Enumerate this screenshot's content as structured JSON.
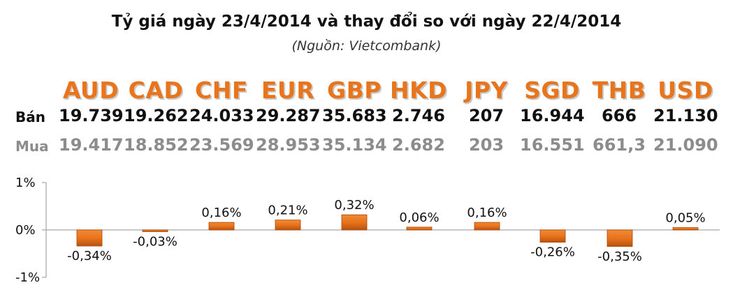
{
  "title": "Tỷ giá ngày 23/4/2014 và thay đổi so với ngày 22/4/2014",
  "subtitle": "(Nguồn: Vietcombank)",
  "rows": {
    "ban_label": "Bán",
    "mua_label": "Mua"
  },
  "colors": {
    "currency_code": "#e8741c",
    "bar_fill": "#e8741c",
    "bar_dark": "#a94708",
    "ban_text": "#111111",
    "mua_text": "#8c8c8c"
  },
  "currencies": [
    {
      "code": "AUD",
      "ban": "19.739",
      "mua": "19.417"
    },
    {
      "code": "CAD",
      "ban": "19.262",
      "mua": "18.852"
    },
    {
      "code": "CHF",
      "ban": "24.033",
      "mua": "23.569"
    },
    {
      "code": "EUR",
      "ban": "29.287",
      "mua": "28.953"
    },
    {
      "code": "GBP",
      "ban": "35.683",
      "mua": "35.134"
    },
    {
      "code": "HKD",
      "ban": "2.746",
      "mua": "2.682"
    },
    {
      "code": "JPY",
      "ban": "207",
      "mua": "203"
    },
    {
      "code": "SGD",
      "ban": "16.944",
      "mua": "16.551"
    },
    {
      "code": "THB",
      "ban": "666",
      "mua": "661,3"
    },
    {
      "code": "USD",
      "ban": "21.130",
      "mua": "21.090"
    }
  ],
  "chart_data": {
    "type": "bar",
    "categories": [
      "AUD",
      "CAD",
      "CHF",
      "EUR",
      "GBP",
      "HKD",
      "JPY",
      "SGD",
      "THB",
      "USD"
    ],
    "values": [
      -0.34,
      -0.03,
      0.16,
      0.21,
      0.32,
      0.06,
      0.16,
      -0.26,
      -0.35,
      0.05
    ],
    "data_labels": [
      "-0,34%",
      "-0,03%",
      "0,16%",
      "0,21%",
      "0,32%",
      "0,06%",
      "0,16%",
      "-0,26%",
      "-0,35%",
      "0,05%"
    ],
    "ylim": [
      -1,
      1
    ],
    "yticks": [
      1,
      0,
      -1
    ],
    "ytick_labels": [
      "1%",
      "0%",
      "-1%"
    ],
    "grid": false,
    "xlabel": "",
    "ylabel": ""
  }
}
